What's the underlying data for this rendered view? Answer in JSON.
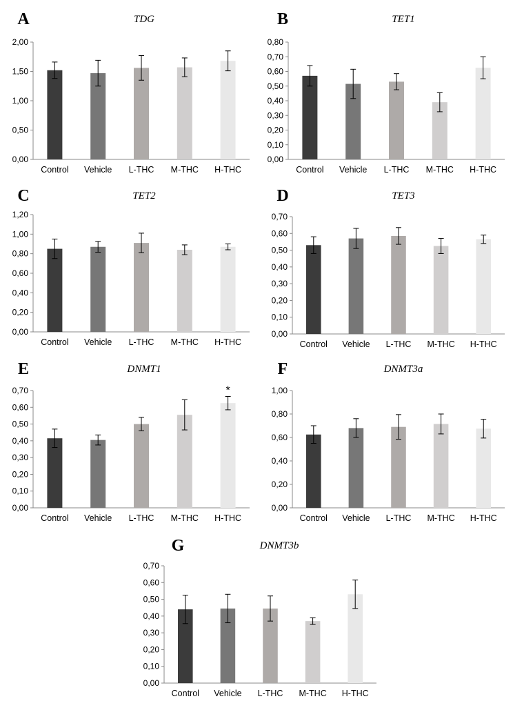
{
  "chart_data": [
    {
      "type": "bar",
      "panel": "A",
      "title": "TDG",
      "categories": [
        "Control",
        "Vehicle",
        "L-THC",
        "M-THC",
        "H-THC"
      ],
      "values": [
        1.52,
        1.47,
        1.56,
        1.57,
        1.68
      ],
      "errors": [
        0.14,
        0.22,
        0.21,
        0.16,
        0.17
      ],
      "yticks": [
        "0,00",
        "0,50",
        "1,00",
        "1,50",
        "2,00"
      ],
      "ylim": [
        0,
        2.0
      ],
      "grid": false,
      "colors": [
        "#3b3b3b",
        "#777777",
        "#aeaaa8",
        "#d0cece",
        "#e8e8e8"
      ]
    },
    {
      "type": "bar",
      "panel": "B",
      "title": "TET1",
      "categories": [
        "Control",
        "Vehicle",
        "L-THC",
        "M-THC",
        "H-THC"
      ],
      "values": [
        0.57,
        0.515,
        0.53,
        0.39,
        0.625
      ],
      "errors": [
        0.07,
        0.1,
        0.055,
        0.065,
        0.075
      ],
      "yticks": [
        "0,00",
        "0,10",
        "0,20",
        "0,30",
        "0,40",
        "0,50",
        "0,60",
        "0,70",
        "0,80"
      ],
      "ylim": [
        0,
        0.8
      ],
      "grid": false,
      "colors": [
        "#3b3b3b",
        "#777777",
        "#aeaaa8",
        "#d0cece",
        "#e8e8e8"
      ]
    },
    {
      "type": "bar",
      "panel": "C",
      "title": "TET2",
      "categories": [
        "Control",
        "Vehicle",
        "L-THC",
        "M-THC",
        "H-THC"
      ],
      "values": [
        0.85,
        0.87,
        0.91,
        0.84,
        0.87
      ],
      "errors": [
        0.1,
        0.055,
        0.1,
        0.05,
        0.03
      ],
      "yticks": [
        "0,00",
        "0,20",
        "0,40",
        "0,60",
        "0,80",
        "1,00",
        "1,20"
      ],
      "ylim": [
        0,
        1.2
      ],
      "grid": false,
      "colors": [
        "#3b3b3b",
        "#777777",
        "#aeaaa8",
        "#d0cece",
        "#e8e8e8"
      ]
    },
    {
      "type": "bar",
      "panel": "D",
      "title": "TET3",
      "categories": [
        "Control",
        "Vehicle",
        "L-THC",
        "M-THC",
        "H-THC"
      ],
      "values": [
        0.53,
        0.57,
        0.585,
        0.525,
        0.565
      ],
      "errors": [
        0.05,
        0.06,
        0.05,
        0.045,
        0.025
      ],
      "yticks": [
        "0,00",
        "0,10",
        "0,20",
        "0,30",
        "0,40",
        "0,50",
        "0,60",
        "0,70"
      ],
      "ylim": [
        0,
        0.7
      ],
      "grid": false,
      "colors": [
        "#3b3b3b",
        "#777777",
        "#aeaaa8",
        "#d0cece",
        "#e8e8e8"
      ]
    },
    {
      "type": "bar",
      "panel": "E",
      "title": "DNMT1",
      "categories": [
        "Control",
        "Vehicle",
        "L-THC",
        "M-THC",
        "H-THC"
      ],
      "values": [
        0.415,
        0.405,
        0.5,
        0.555,
        0.625
      ],
      "errors": [
        0.055,
        0.03,
        0.04,
        0.09,
        0.04
      ],
      "annotations": [
        "",
        "",
        "",
        "",
        "*"
      ],
      "yticks": [
        "0,00",
        "0,10",
        "0,20",
        "0,30",
        "0,40",
        "0,50",
        "0,60",
        "0,70"
      ],
      "ylim": [
        0,
        0.7
      ],
      "grid": false,
      "colors": [
        "#3b3b3b",
        "#777777",
        "#aeaaa8",
        "#d0cece",
        "#e8e8e8"
      ]
    },
    {
      "type": "bar",
      "panel": "F",
      "title": "DNMT3a",
      "categories": [
        "Control",
        "Vehicle",
        "L-THC",
        "M-THC",
        "H-THC"
      ],
      "values": [
        0.625,
        0.68,
        0.69,
        0.715,
        0.675
      ],
      "errors": [
        0.075,
        0.08,
        0.105,
        0.085,
        0.08
      ],
      "yticks": [
        "0,00",
        "0,20",
        "0,40",
        "0,60",
        "0,80",
        "1,00"
      ],
      "ylim": [
        0,
        1.0
      ],
      "grid": false,
      "colors": [
        "#3b3b3b",
        "#777777",
        "#aeaaa8",
        "#d0cece",
        "#e8e8e8"
      ]
    },
    {
      "type": "bar",
      "panel": "G",
      "title": "DNMT3b",
      "categories": [
        "Control",
        "Vehicle",
        "L-THC",
        "M-THC",
        "H-THC"
      ],
      "values": [
        0.44,
        0.445,
        0.445,
        0.37,
        0.53
      ],
      "errors": [
        0.085,
        0.085,
        0.075,
        0.02,
        0.085
      ],
      "yticks": [
        "0,00",
        "0,10",
        "0,20",
        "0,30",
        "0,40",
        "0,50",
        "0,60",
        "0,70"
      ],
      "ylim": [
        0,
        0.7
      ],
      "grid": false,
      "colors": [
        "#3b3b3b",
        "#777777",
        "#aeaaa8",
        "#d0cece",
        "#e8e8e8"
      ]
    }
  ]
}
